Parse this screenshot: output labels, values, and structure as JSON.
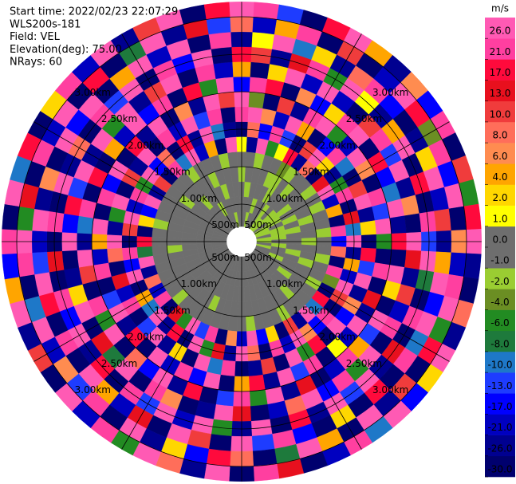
{
  "chart_data": {
    "type": "ppi",
    "info": [
      "Start time: 2022/02/23 22:07:29",
      "WLS200s-181",
      "Field: VEL",
      "Elevation(deg): 75.00",
      "NRays: 60"
    ],
    "rlim": [
      0.2,
      3.2
    ],
    "range_rings": [
      {
        "value": 0.5,
        "label": "500m"
      },
      {
        "value": 1.0,
        "label": "1.00km"
      },
      {
        "value": 1.5,
        "label": "1.50km"
      },
      {
        "value": 2.0,
        "label": "2.00km"
      },
      {
        "value": 2.5,
        "label": "2.50km"
      },
      {
        "value": 3.0,
        "label": "3.00km"
      }
    ],
    "colorbar": {
      "title": "m/s",
      "levels": [
        -30,
        -26,
        -21,
        -17,
        -13,
        -10,
        -8,
        -6,
        -4,
        -2,
        -1,
        0,
        1,
        2,
        4,
        6,
        8,
        10,
        13,
        17,
        21,
        26,
        30
      ],
      "colors": [
        "#00006e",
        "#000090",
        "#0000c0",
        "#0000ff",
        "#1e3cff",
        "#1e78c8",
        "#1e7a3c",
        "#228b22",
        "#6b8e23",
        "#9acd32",
        "#6e6e6e",
        "#6e6e6e",
        "#ffff00",
        "#ffd700",
        "#ffa500",
        "#ff8c50",
        "#ff6e5a",
        "#f03c3c",
        "#e8101e",
        "#ff0a3c",
        "#ff3fa0",
        "#ff5ab4"
      ],
      "ticks": [
        {
          "value": -30,
          "label": "-30.0"
        },
        {
          "value": -26,
          "label": "-26.0"
        },
        {
          "value": -21,
          "label": "-21.0"
        },
        {
          "value": -17,
          "label": "-17.0"
        },
        {
          "value": -13,
          "label": "-13.0"
        },
        {
          "value": -10,
          "label": "-10.0"
        },
        {
          "value": -8,
          "label": "-8.0"
        },
        {
          "value": -6,
          "label": "-6.0"
        },
        {
          "value": -4,
          "label": "-4.0"
        },
        {
          "value": -2,
          "label": "-2.0"
        },
        {
          "value": -1,
          "label": "-1.0"
        },
        {
          "value": 0,
          "label": "0.0"
        },
        {
          "value": 1,
          "label": "1.0"
        },
        {
          "value": 2,
          "label": "2.0"
        },
        {
          "value": 4,
          "label": "4.0"
        },
        {
          "value": 6,
          "label": "6.0"
        },
        {
          "value": 8,
          "label": "8.0"
        },
        {
          "value": 10,
          "label": "10.0"
        },
        {
          "value": 13,
          "label": "13.0"
        },
        {
          "value": 17,
          "label": "17.0"
        },
        {
          "value": 21,
          "label": "21.0"
        },
        {
          "value": 26,
          "label": "26.0"
        }
      ]
    },
    "rays": [
      [
        0.5,
        0.5,
        0.5,
        -1.5,
        0.5,
        1.5,
        -28,
        23,
        28,
        -15,
        5,
        19,
        -23,
        9,
        28
      ],
      [
        0.5,
        0.5,
        -1.5,
        0.5,
        0.5,
        -23,
        9,
        28,
        -3,
        23,
        -28,
        11,
        1.5,
        -19,
        23
      ],
      [
        -1.5,
        0.5,
        0.5,
        0.5,
        -1.5,
        28,
        -15,
        7,
        -28,
        19,
        3,
        -23,
        28,
        5,
        -11
      ],
      [
        0.5,
        -1.5,
        0.5,
        0.5,
        0.5,
        -5,
        23,
        -19,
        11,
        -28,
        28,
        15,
        -9,
        23,
        -28
      ],
      [
        0.5,
        0.5,
        0.5,
        -1.5,
        0.5,
        1.5,
        -11,
        28,
        -23,
        7,
        -19,
        23,
        3,
        -28,
        19
      ],
      [
        0.5,
        0.5,
        -1.5,
        -1.5,
        -3,
        19,
        -28,
        5,
        23,
        -15,
        28,
        -5,
        -23,
        11,
        28
      ],
      [
        -1.5,
        -1.5,
        0.5,
        0.5,
        -1.5,
        -23,
        11,
        -28,
        28,
        3,
        -19,
        28,
        9,
        -28,
        5
      ],
      [
        -1.5,
        0.5,
        0.5,
        -1.5,
        0.5,
        9,
        28,
        -15,
        -5,
        23,
        -28,
        1.5,
        23,
        -19,
        -23
      ],
      [
        -1.5,
        -1.5,
        0.5,
        0.5,
        0.5,
        -28,
        3,
        23,
        -19,
        28,
        11,
        -23,
        -15,
        28,
        7
      ],
      [
        0.5,
        -1.5,
        -1.5,
        0.5,
        -1.5,
        15,
        -23,
        -9,
        28,
        -28,
        23,
        5,
        -28,
        19,
        -15
      ],
      [
        -1.5,
        -1.5,
        0.5,
        0.5,
        0.5,
        28,
        -5,
        -28,
        7,
        19,
        -11,
        28,
        -23,
        -3,
        23
      ],
      [
        -1.5,
        0.5,
        -1.5,
        0.5,
        -1.5,
        -19,
        23,
        11,
        -28,
        -15,
        28,
        -28,
        3,
        23,
        -28
      ],
      [
        -1.5,
        -1.5,
        0.5,
        -1.5,
        0.5,
        5,
        -28,
        28,
        23,
        -9,
        -23,
        19,
        28,
        -15,
        11
      ],
      [
        0.5,
        -1.5,
        -1.5,
        0.5,
        0.5,
        -28,
        15,
        -23,
        -11,
        28,
        7,
        -28,
        -19,
        28,
        -5
      ],
      [
        -1.5,
        -1.5,
        0.5,
        0.5,
        -1.5,
        23,
        -9,
        3,
        28,
        -23,
        -28,
        23,
        11,
        -28,
        19
      ],
      [
        -1.5,
        0.5,
        0.5,
        -1.5,
        0.5,
        -15,
        28,
        -28,
        -5,
        19,
        28,
        -11,
        -23,
        7,
        28
      ],
      [
        0.5,
        -1.5,
        0.5,
        0.5,
        0.5,
        9,
        -23,
        19,
        -28,
        -28,
        15,
        28,
        5,
        -19,
        -23
      ],
      [
        -1.5,
        0.5,
        -1.5,
        0.5,
        -1.5,
        -28,
        5,
        -11,
        23,
        28,
        -23,
        -7,
        28,
        23,
        -28
      ],
      [
        0.5,
        0.5,
        0.5,
        -1.5,
        0.5,
        23,
        -19,
        28,
        -28,
        3,
        11,
        -28,
        -15,
        28,
        9
      ],
      [
        0.5,
        -1.5,
        0.5,
        0.5,
        0.5,
        -3,
        28,
        -23,
        15,
        -28,
        -19,
        23,
        28,
        -5,
        -23
      ],
      [
        0.5,
        0.5,
        0.5,
        0.5,
        -1.5,
        -28,
        11,
        7,
        -23,
        28,
        23,
        -28,
        -9,
        19,
        28
      ],
      [
        0.5,
        0.5,
        -1.5,
        0.5,
        0.5,
        19,
        -28,
        -15,
        28,
        -11,
        -28,
        15,
        23,
        -28,
        3
      ],
      [
        0.5,
        0.5,
        0.5,
        0.5,
        0.5,
        -9,
        23,
        28,
        -19,
        5,
        28,
        -23,
        -28,
        11,
        -15
      ],
      [
        0.5,
        0.5,
        0.5,
        -1.5,
        0.5,
        28,
        -15,
        -28,
        1.5,
        23,
        -5,
        28,
        19,
        -23,
        28
      ],
      [
        0.5,
        0.5,
        0.5,
        0.5,
        0.5,
        -23,
        7,
        19,
        -28,
        -19,
        23,
        -11,
        -28,
        28,
        -9
      ],
      [
        0.5,
        0.5,
        0.5,
        0.5,
        -1.5,
        11,
        28,
        -5,
        23,
        -28,
        -15,
        28,
        3,
        -28,
        23
      ],
      [
        0.5,
        0.5,
        0.5,
        0.5,
        0.5,
        -28,
        -19,
        28,
        -11,
        15,
        28,
        -23,
        -28,
        5,
        -19
      ],
      [
        0.5,
        0.5,
        0.5,
        0.5,
        0.5,
        3,
        23,
        -28,
        28,
        -23,
        9,
        19,
        -15,
        28,
        -28
      ],
      [
        0.5,
        0.5,
        0.5,
        0.5,
        0.5,
        -15,
        -28,
        11,
        -23,
        28,
        -19,
        -28,
        23,
        -7,
        15
      ],
      [
        0.5,
        0.5,
        0.5,
        0.5,
        -1.5,
        28,
        9,
        -23,
        19,
        -5,
        -28,
        28,
        -11,
        -28,
        23
      ],
      [
        0.5,
        0.5,
        0.5,
        0.5,
        0.5,
        -19,
        28,
        -28,
        5,
        23,
        15,
        -23,
        28,
        9,
        -28
      ],
      [
        0.5,
        0.5,
        0.5,
        0.5,
        0.5,
        7,
        -23,
        23,
        -28,
        -11,
        28,
        -5,
        -28,
        19,
        28
      ],
      [
        0.5,
        0.5,
        0.5,
        0.5,
        0.5,
        -28,
        15,
        -9,
        28,
        -28,
        -23,
        28,
        11,
        -15,
        -23
      ],
      [
        0.5,
        0.5,
        0.5,
        0.5,
        0.5,
        23,
        -5,
        28,
        -15,
        19,
        -28,
        -19,
        28,
        3,
        9
      ],
      [
        0.5,
        0.5,
        0.5,
        -1.5,
        0.5,
        -11,
        28,
        -28,
        23,
        -23,
        7,
        28,
        -28,
        -23,
        28
      ],
      [
        0.5,
        0.5,
        0.5,
        0.5,
        0.5,
        28,
        -28,
        3,
        -19,
        28,
        23,
        -11,
        15,
        28,
        -5
      ],
      [
        0.5,
        0.5,
        0.5,
        0.5,
        0.5,
        -5,
        19,
        -23,
        28,
        -15,
        -28,
        23,
        -19,
        -28,
        23
      ],
      [
        0.5,
        0.5,
        0.5,
        0.5,
        0.5,
        15,
        -23,
        28,
        -28,
        9,
        28,
        -28,
        5,
        23,
        -19
      ],
      [
        0.5,
        0.5,
        0.5,
        0.5,
        -1.5,
        -28,
        28,
        -11,
        19,
        -28,
        -7,
        19,
        28,
        -11,
        28
      ],
      [
        0.5,
        0.5,
        0.5,
        0.5,
        0.5,
        23,
        -9,
        -28,
        -23,
        28,
        15,
        -23,
        -28,
        7,
        -28
      ],
      [
        0.5,
        0.5,
        0.5,
        0.5,
        0.5,
        -19,
        5,
        23,
        28,
        -5,
        -28,
        28,
        23,
        -19,
        11
      ],
      [
        0.5,
        0.5,
        0.5,
        0.5,
        0.5,
        9,
        -28,
        -19,
        -11,
        23,
        28,
        -15,
        -28,
        28,
        -23
      ],
      [
        0.5,
        0.5,
        0.5,
        0.5,
        0.5,
        -23,
        28,
        15,
        -28,
        -28,
        3,
        23,
        19,
        -9,
        28
      ],
      [
        0.5,
        0.5,
        0.5,
        0.5,
        0.5,
        28,
        -15,
        -28,
        23,
        11,
        -23,
        -28,
        28,
        -28,
        5
      ],
      [
        0.5,
        0.5,
        0.5,
        -1.5,
        0.5,
        -7,
        23,
        9,
        -19,
        28,
        -28,
        15,
        -11,
        23,
        -15
      ],
      [
        0.5,
        0.5,
        0.5,
        0.5,
        0.5,
        19,
        -28,
        28,
        5,
        -23,
        28,
        -28,
        -19,
        28,
        23
      ],
      [
        0.5,
        0.5,
        0.5,
        0.5,
        0.5,
        -28,
        11,
        -23,
        28,
        -9,
        -15,
        23,
        28,
        -5,
        -28
      ],
      [
        0.5,
        0.5,
        0.5,
        0.5,
        -1.5,
        3,
        28,
        -5,
        -28,
        23,
        19,
        -28,
        -23,
        15,
        28
      ],
      [
        0.5,
        0.5,
        0.5,
        0.5,
        0.5,
        -15,
        -19,
        28,
        23,
        -28,
        -11,
        28,
        7,
        -28,
        -9
      ],
      [
        0.5,
        0.5,
        0.5,
        0.5,
        0.5,
        28,
        23,
        -28,
        -15,
        19,
        28,
        -23,
        -28,
        23,
        19
      ],
      [
        0.5,
        0.5,
        0.5,
        0.5,
        0.5,
        -23,
        -5,
        11,
        28,
        -28,
        -23,
        9,
        28,
        -19,
        -28
      ],
      [
        0.5,
        0.5,
        0.5,
        -1.5,
        0.5,
        11,
        28,
        -23,
        -28,
        5,
        28,
        -28,
        -15,
        28,
        3
      ],
      [
        0.5,
        0.5,
        0.5,
        0.5,
        0.5,
        -28,
        -15,
        28,
        19,
        -19,
        -5,
        23,
        28,
        -28,
        23
      ],
      [
        0.5,
        0.5,
        -1.5,
        0.5,
        0.5,
        23,
        9,
        -28,
        -23,
        28,
        28,
        -11,
        -28,
        19,
        -19
      ],
      [
        0.5,
        0.5,
        0.5,
        0.5,
        -1.5,
        -9,
        -28,
        23,
        28,
        -15,
        -23,
        28,
        5,
        -28,
        28
      ],
      [
        0.5,
        -1.5,
        0.5,
        0.5,
        0.5,
        28,
        19,
        -19,
        -28,
        23,
        11,
        -28,
        28,
        -7,
        -23
      ],
      [
        0.5,
        0.5,
        0.5,
        -1.5,
        0.5,
        -19,
        -23,
        28,
        7,
        -28,
        28,
        23,
        -19,
        28,
        11
      ],
      [
        0.5,
        0.5,
        -1.5,
        0.5,
        0.5,
        5,
        28,
        -11,
        -23,
        19,
        -28,
        -15,
        28,
        -23,
        28
      ],
      [
        -1.5,
        0.5,
        0.5,
        0.5,
        -1.5,
        -28,
        -9,
        23,
        28,
        -5,
        23,
        28,
        -28,
        15,
        -28
      ],
      [
        0.5,
        0.5,
        0.5,
        0.5,
        0.5,
        28,
        -23,
        -28,
        11,
        28,
        -19,
        -28,
        23,
        -11,
        19
      ]
    ]
  }
}
